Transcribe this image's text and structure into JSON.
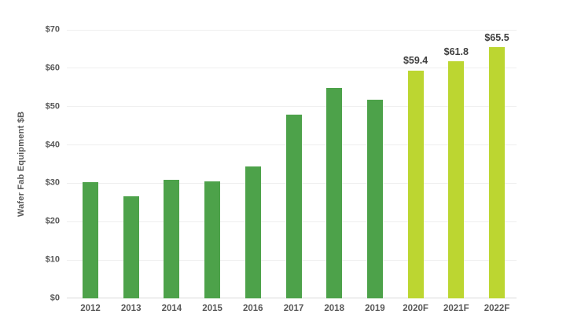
{
  "chart_data": {
    "type": "bar",
    "title": "",
    "xlabel": "",
    "ylabel": "Wafer Fab Equipment $B",
    "categories": [
      "2012",
      "2013",
      "2014",
      "2015",
      "2016",
      "2017",
      "2018",
      "2019",
      "2020F",
      "2021F",
      "2022F"
    ],
    "values": [
      30.2,
      26.7,
      30.9,
      30.6,
      34.4,
      48.0,
      54.8,
      51.7,
      59.4,
      61.8,
      65.5
    ],
    "forecast": [
      false,
      false,
      false,
      false,
      false,
      false,
      false,
      false,
      true,
      true,
      true
    ],
    "bar_labels": [
      "",
      "",
      "",
      "",
      "",
      "",
      "",
      "",
      "$59.4",
      "$61.8",
      "$65.5"
    ],
    "yticks": [
      "$0",
      "$10",
      "$20",
      "$30",
      "$40",
      "$50",
      "$60",
      "$70"
    ],
    "ytick_values": [
      0,
      10,
      20,
      30,
      40,
      50,
      60,
      70
    ],
    "ylim": [
      0,
      70
    ],
    "grid": true,
    "legend": "none",
    "colors": {
      "historical_bar": "#4DA24A",
      "forecast_bar": "#BCD631",
      "value_label_text": "#3f3f3f",
      "axis_text": "#595959",
      "gridline": "#efefef",
      "baseline": "#d9d9d9",
      "background": "#ffffff"
    }
  }
}
